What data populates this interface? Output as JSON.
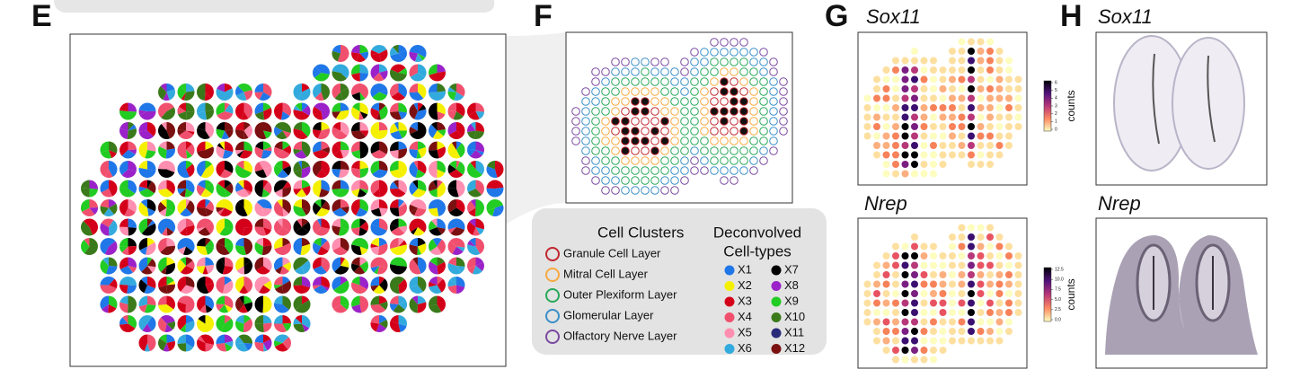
{
  "panels": {
    "e": "E",
    "f": "F",
    "g": "G",
    "h": "H"
  },
  "genes": {
    "g_top": "Sox11",
    "g_bottom": "Nrep",
    "h_top": "Sox11",
    "h_bottom": "Nrep"
  },
  "colorbars": {
    "label": "counts",
    "top_ticks": [
      0,
      1,
      2,
      3,
      4,
      5,
      6
    ],
    "bottom_ticks": [
      {
        "value": 0,
        "label": "0.0"
      },
      {
        "value": 2.5,
        "label": "2.5"
      },
      {
        "value": 5,
        "label": "5.0"
      },
      {
        "value": 7.5,
        "label": "7.5"
      },
      {
        "value": 10,
        "label": "10.0"
      },
      {
        "value": 12.5,
        "label": "12.5"
      }
    ]
  },
  "legend": {
    "clusters_title": "Cell Clusters",
    "clusters": [
      {
        "label": "Granule Cell Layer",
        "color": "#c0272d"
      },
      {
        "label": "Mitral Cell Layer",
        "color": "#f7a941"
      },
      {
        "label": "Outer Plexiform Layer",
        "color": "#29a85a"
      },
      {
        "label": "Glomerular Layer",
        "color": "#3a8fc8"
      },
      {
        "label": "Olfactory Nerve Layer",
        "color": "#7a4aa0"
      }
    ],
    "celltypes_title": [
      "Deconvolved",
      "Cell-types"
    ],
    "celltypes": [
      {
        "label": "X1",
        "color": "#1f77e8"
      },
      {
        "label": "X2",
        "color": "#f5f000"
      },
      {
        "label": "X3",
        "color": "#d4001a"
      },
      {
        "label": "X4",
        "color": "#f0506e"
      },
      {
        "label": "X5",
        "color": "#ff8fb0"
      },
      {
        "label": "X6",
        "color": "#33aadd"
      },
      {
        "label": "X7",
        "color": "#000000"
      },
      {
        "label": "X8",
        "color": "#9a22c8"
      },
      {
        "label": "X9",
        "color": "#22cc22"
      },
      {
        "label": "X10",
        "color": "#3a7a1a"
      },
      {
        "label": "X11",
        "color": "#2a2a7a"
      },
      {
        "label": "X12",
        "color": "#7a1010"
      }
    ]
  }
}
